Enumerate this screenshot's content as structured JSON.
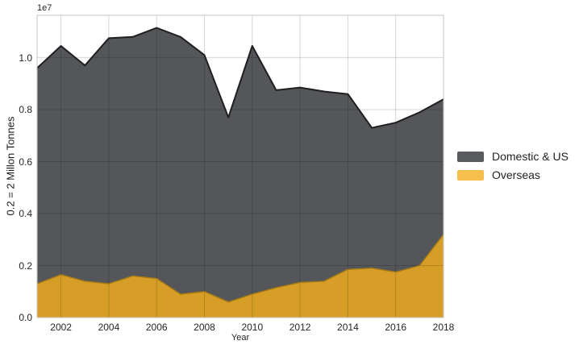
{
  "figure": {
    "offset_label": "1e7",
    "xlabel": "Year",
    "ylabel": "0.2 = 2 Millon Tonnes"
  },
  "legend": {
    "items": [
      {
        "label": "Domestic & US",
        "swatch_color": "#595a5e"
      },
      {
        "label": "Overseas",
        "swatch_color": "#f6be4d"
      }
    ]
  },
  "chart_data": {
    "type": "area",
    "mode": "overlay",
    "title": "",
    "xlabel": "Year",
    "ylabel": "0.2 = 2 Millon Tonnes",
    "values_unit": "1e7 tonnes",
    "x": [
      2001,
      2002,
      2003,
      2004,
      2005,
      2006,
      2007,
      2008,
      2009,
      2010,
      2011,
      2012,
      2013,
      2014,
      2015,
      2016,
      2017,
      2018
    ],
    "series": [
      {
        "name": "Domestic & US",
        "fill_color": "#55565a",
        "edge_color": "#1f1f1f",
        "values": [
          0.96,
          1.045,
          0.97,
          1.075,
          1.08,
          1.115,
          1.08,
          1.01,
          0.77,
          1.045,
          0.875,
          0.885,
          0.87,
          0.86,
          0.73,
          0.75,
          0.79,
          0.84
        ]
      },
      {
        "name": "Overseas",
        "fill_color": "#d69e26",
        "edge_color": "#a87b15",
        "values": [
          0.13,
          0.165,
          0.14,
          0.13,
          0.16,
          0.15,
          0.09,
          0.1,
          0.06,
          0.09,
          0.115,
          0.135,
          0.14,
          0.185,
          0.19,
          0.175,
          0.2,
          0.32
        ]
      }
    ],
    "xlim": [
      2001,
      2018
    ],
    "ylim": [
      0,
      1.163
    ],
    "x_ticks": [
      2002,
      2004,
      2006,
      2008,
      2010,
      2012,
      2014,
      2016,
      2018
    ],
    "y_ticks": [
      0.0,
      0.2,
      0.4,
      0.6,
      0.8,
      1.0
    ],
    "grid": true,
    "grid_color": "rgba(0,0,0,0.16)",
    "spine_color": "#c6c6c6",
    "legend_position": "center-right"
  }
}
